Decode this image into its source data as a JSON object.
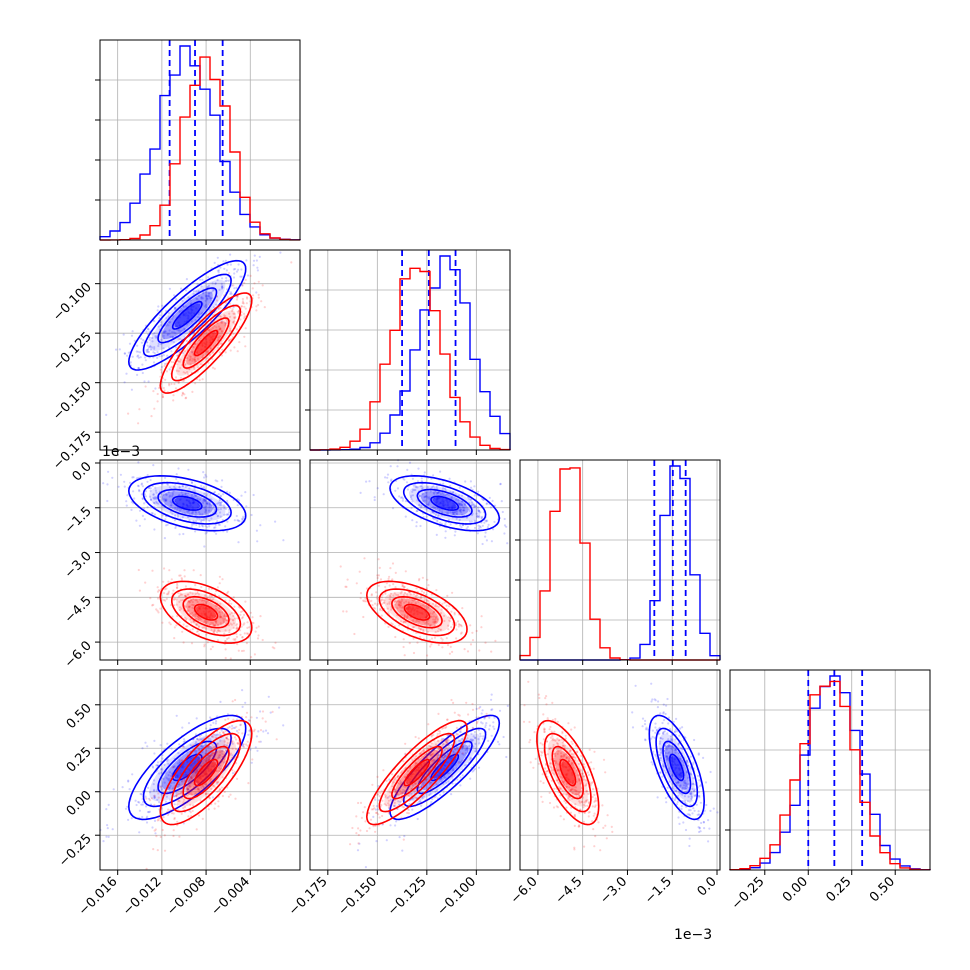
{
  "chart_data": {
    "type": "corner",
    "title": "",
    "grid": true,
    "colors": {
      "blue": "#0000ff",
      "red": "#ff0000",
      "grid": "#b0b0b0"
    },
    "parameters": [
      {
        "ticks": [
          -0.016,
          -0.012,
          -0.008,
          -0.004
        ],
        "tick_labels": [
          "−0.016",
          "−0.012",
          "−0.008",
          "−0.004"
        ],
        "range": [
          -0.0176,
          0.0005
        ],
        "offset_text": ""
      },
      {
        "ticks": [
          -0.175,
          -0.15,
          -0.125,
          -0.1
        ],
        "tick_labels": [
          "−0.175",
          "−0.150",
          "−0.125",
          "−0.100"
        ],
        "range": [
          -0.184,
          -0.083
        ],
        "offset_text": ""
      },
      {
        "ticks": [
          -6.0,
          -4.5,
          -3.0,
          -1.5,
          0.0
        ],
        "tick_labels": [
          "−6.0",
          "−4.5",
          "−3.0",
          "−1.5",
          "0.0"
        ],
        "range": [
          -6.6,
          0.1
        ],
        "offset_text": "1e−3"
      },
      {
        "ticks": [
          -0.25,
          0.0,
          0.25,
          0.5
        ],
        "tick_labels": [
          "−0.25",
          "0.00",
          "0.25",
          "0.50"
        ],
        "range": [
          -0.45,
          0.7
        ],
        "offset_text": ""
      }
    ],
    "series": [
      {
        "color": "blue",
        "means": [
          -0.0097,
          -0.116,
          -0.00135,
          0.14
        ],
        "sigmas": [
          0.0023,
          0.012,
          0.0004,
          0.13
        ],
        "correlations": [
          [
            1,
            0.85,
            -0.45,
            0.75
          ],
          [
            0.85,
            1,
            -0.55,
            0.85
          ],
          [
            -0.45,
            -0.55,
            1,
            -0.65
          ],
          [
            0.75,
            0.85,
            -0.65,
            1
          ]
        ],
        "quantiles": [
          [
            -0.0113,
            -0.009,
            -0.0065
          ],
          [
            -0.1375,
            -0.124,
            -0.1105
          ],
          [
            -0.0021,
            -0.00148,
            -0.00105
          ],
          [
            0.0,
            0.15,
            0.31
          ]
        ]
      },
      {
        "color": "red",
        "means": [
          -0.008,
          -0.13,
          -0.005,
          0.11
        ],
        "sigmas": [
          0.0018,
          0.011,
          0.00045,
          0.13
        ],
        "correlations": [
          [
            1,
            0.85,
            -0.5,
            0.75
          ],
          [
            0.85,
            1,
            -0.55,
            0.85
          ],
          [
            -0.5,
            -0.55,
            1,
            -0.65
          ],
          [
            0.75,
            0.85,
            -0.65,
            1
          ]
        ],
        "quantiles": null
      }
    ],
    "histogram_bins": 20,
    "contour_sigmas": [
      0.5,
      1.0,
      1.5,
      2.0
    ]
  }
}
